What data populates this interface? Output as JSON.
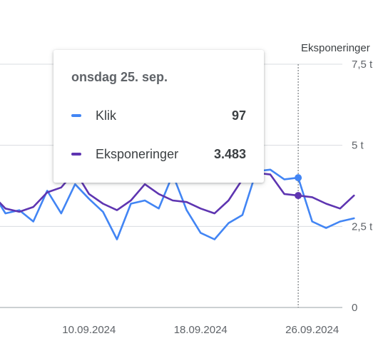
{
  "chart_data": {
    "type": "line",
    "right_axis_title": "Eksponeringer",
    "x_ticks": [
      "10.09.2024",
      "18.09.2024",
      "26.09.2024"
    ],
    "y_ticks": [
      "0",
      "2,5 t",
      "5 t",
      "7,5 t"
    ],
    "ylim": [
      0,
      7.5
    ],
    "grid": true,
    "series": [
      {
        "name": "Klik",
        "color": "#4285f4",
        "dates": [
          "03.09",
          "04.09",
          "05.09",
          "06.09",
          "07.09",
          "08.09",
          "09.09",
          "10.09",
          "11.09",
          "12.09",
          "13.09",
          "14.09",
          "15.09",
          "16.09",
          "17.09",
          "18.09",
          "19.09",
          "20.09",
          "21.09",
          "22.09",
          "23.09",
          "24.09",
          "25.09",
          "26.09",
          "27.09",
          "28.09",
          "29.09",
          "30.09"
        ],
        "values": [
          3.6,
          2.9,
          3.0,
          2.65,
          3.6,
          2.9,
          3.8,
          3.35,
          2.95,
          2.1,
          3.2,
          3.3,
          3.05,
          4.1,
          3.0,
          2.3,
          2.1,
          2.6,
          2.85,
          4.2,
          4.25,
          3.95,
          4.0,
          2.65,
          2.45,
          2.65,
          2.75,
          null
        ]
      },
      {
        "name": "Eksponeringer",
        "color": "#5e35b1",
        "dates": [
          "03.09",
          "04.09",
          "05.09",
          "06.09",
          "07.09",
          "08.09",
          "09.09",
          "10.09",
          "11.09",
          "12.09",
          "13.09",
          "14.09",
          "15.09",
          "16.09",
          "17.09",
          "18.09",
          "19.09",
          "20.09",
          "21.09",
          "22.09",
          "23.09",
          "24.09",
          "25.09",
          "26.09",
          "27.09",
          "28.09",
          "29.09",
          "30.09"
        ],
        "values": [
          3.5,
          3.05,
          2.95,
          3.1,
          3.55,
          3.7,
          4.2,
          3.5,
          3.2,
          3.0,
          3.3,
          3.8,
          3.5,
          3.3,
          3.25,
          3.05,
          2.9,
          3.3,
          3.95,
          4.15,
          4.1,
          3.5,
          3.45,
          3.4,
          3.2,
          3.05,
          3.45,
          null
        ]
      }
    ],
    "selected_index": 22
  },
  "tooltip": {
    "date": "onsdag 25. sep.",
    "rows": [
      {
        "label": "Klik",
        "value": "97",
        "color": "#4285f4"
      },
      {
        "label": "Eksponeringer",
        "value": "3.483",
        "color": "#5e35b1"
      }
    ]
  }
}
